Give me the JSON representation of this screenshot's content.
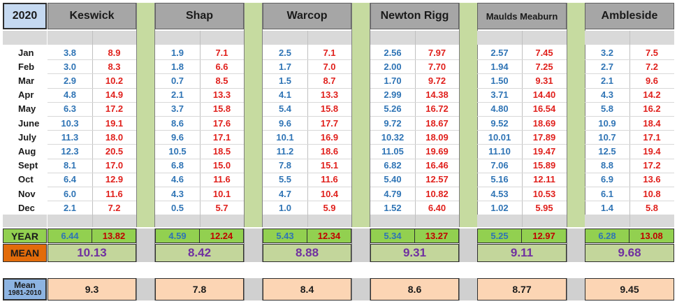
{
  "year_label": "2020",
  "months": [
    "Jan",
    "Feb",
    "Mar",
    "Apr",
    "May",
    "June",
    "July",
    "Aug",
    "Sept",
    "Oct",
    "Nov",
    "Dec"
  ],
  "stations": [
    {
      "name": "Keswick",
      "min": [
        "3.8",
        "3.0",
        "2.9",
        "4.8",
        "6.3",
        "10.3",
        "11.3",
        "12.3",
        "8.1",
        "6.4",
        "6.0",
        "2.1"
      ],
      "max": [
        "8.9",
        "8.3",
        "10.2",
        "14.9",
        "17.2",
        "19.1",
        "18.0",
        "20.5",
        "17.0",
        "12.9",
        "11.6",
        "7.2"
      ],
      "year_min": "6.44",
      "year_max": "13.82",
      "mean": "10.13",
      "normal": "9.3"
    },
    {
      "name": "Shap",
      "min": [
        "1.9",
        "1.8",
        "0.7",
        "2.1",
        "3.7",
        "8.6",
        "9.6",
        "10.5",
        "6.8",
        "4.6",
        "4.3",
        "0.5"
      ],
      "max": [
        "7.1",
        "6.6",
        "8.5",
        "13.3",
        "15.8",
        "17.6",
        "17.1",
        "18.5",
        "15.0",
        "11.6",
        "10.1",
        "5.7"
      ],
      "year_min": "4.59",
      "year_max": "12.24",
      "mean": "8.42",
      "normal": "7.8"
    },
    {
      "name": "Warcop",
      "min": [
        "2.5",
        "1.7",
        "1.5",
        "4.1",
        "5.4",
        "9.6",
        "10.1",
        "11.2",
        "7.8",
        "5.5",
        "4.7",
        "1.0"
      ],
      "max": [
        "7.1",
        "7.0",
        "8.7",
        "13.3",
        "15.8",
        "17.7",
        "16.9",
        "18.6",
        "15.1",
        "11.6",
        "10.4",
        "5.9"
      ],
      "year_min": "5.43",
      "year_max": "12.34",
      "mean": "8.88",
      "normal": "8.4"
    },
    {
      "name": "Newton Rigg",
      "min": [
        "2.56",
        "2.00",
        "1.70",
        "2.99",
        "5.26",
        "9.72",
        "10.32",
        "11.05",
        "6.82",
        "5.40",
        "4.79",
        "1.52"
      ],
      "max": [
        "7.97",
        "7.70",
        "9.72",
        "14.38",
        "16.72",
        "18.67",
        "18.09",
        "19.69",
        "16.46",
        "12.57",
        "10.82",
        "6.40"
      ],
      "year_min": "5.34",
      "year_max": "13.27",
      "mean": "9.31",
      "normal": "8.6"
    },
    {
      "name": "Maulds Meaburn",
      "min": [
        "2.57",
        "1.94",
        "1.50",
        "3.71",
        "4.80",
        "9.52",
        "10.01",
        "11.10",
        "7.06",
        "5.16",
        "4.53",
        "1.02"
      ],
      "max": [
        "7.45",
        "7.25",
        "9.31",
        "14.40",
        "16.54",
        "18.69",
        "17.89",
        "19.47",
        "15.89",
        "12.11",
        "10.53",
        "5.95"
      ],
      "year_min": "5.25",
      "year_max": "12.97",
      "mean": "9.11",
      "normal": "8.77"
    },
    {
      "name": "Ambleside",
      "min": [
        "3.2",
        "2.7",
        "2.1",
        "4.3",
        "5.8",
        "10.9",
        "10.7",
        "12.5",
        "8.8",
        "6.9",
        "6.1",
        "1.4"
      ],
      "max": [
        "7.5",
        "7.2",
        "9.6",
        "14.2",
        "16.2",
        "18.4",
        "17.1",
        "19.4",
        "17.2",
        "13.6",
        "10.8",
        "5.8"
      ],
      "year_min": "6.28",
      "year_max": "13.08",
      "mean": "9.68",
      "normal": "9.45"
    }
  ],
  "labels": {
    "year": "YEAR",
    "mean": "MEAN",
    "normal_line1": "Mean",
    "normal_line2": "1981-2010"
  },
  "colors": {
    "header_gray": "#a6a6a6",
    "min_blue": "#2f74b5",
    "max_red": "#e0201c",
    "year_green": "#92d050",
    "mean_green": "#c3d69b",
    "mean_purple": "#7030a0",
    "mean_label_orange": "#e26b0a",
    "normal_peach": "#fcd5b4",
    "label_blue": "#8db4e2"
  }
}
